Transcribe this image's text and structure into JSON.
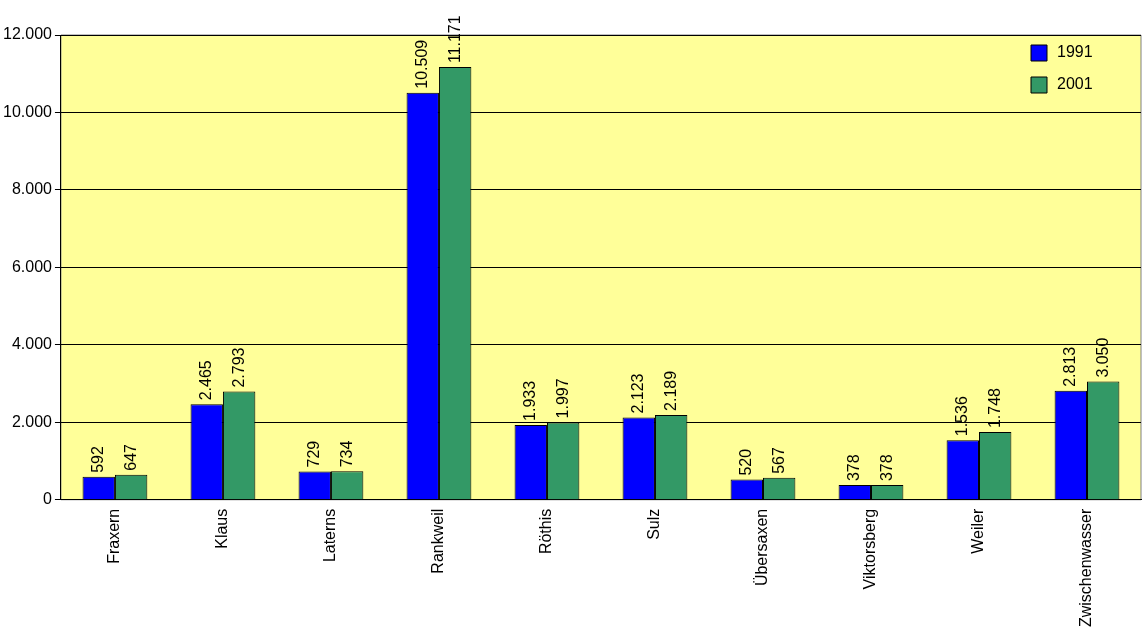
{
  "chart_data": {
    "type": "bar",
    "categories": [
      "Fraxern",
      "Klaus",
      "Laterns",
      "Rankweil",
      "Röthis",
      "Sulz",
      "Übersaxen",
      "Viktorsberg",
      "Weiler",
      "Zwischenwasser"
    ],
    "series": [
      {
        "name": "1991",
        "color": "#0000ff",
        "values": [
          592,
          2465,
          729,
          10509,
          1933,
          2123,
          520,
          378,
          1536,
          2813
        ],
        "value_labels": [
          "592",
          "2.465",
          "729",
          "10.509",
          "1.933",
          "2.123",
          "520",
          "378",
          "1.536",
          "2.813"
        ]
      },
      {
        "name": "2001",
        "color": "#339966",
        "values": [
          647,
          2793,
          734,
          11171,
          1997,
          2189,
          567,
          378,
          1748,
          3050
        ],
        "value_labels": [
          "647",
          "2.793",
          "734",
          "11.171",
          "1.997",
          "2.189",
          "567",
          "378",
          "1.748",
          "3.050"
        ]
      }
    ],
    "ylim": [
      0,
      12000
    ],
    "yticks": [
      0,
      {
        "value": 2000,
        "label": "2.000"
      },
      {
        "value": 4000,
        "label": "4.000"
      },
      {
        "value": 6000,
        "label": "6.000"
      },
      {
        "value": 8000,
        "label": "8.000"
      },
      {
        "value": 10000,
        "label": "10.000"
      },
      {
        "value": 12000,
        "label": "12.000"
      }
    ],
    "grid": "y",
    "legend": "top right"
  }
}
